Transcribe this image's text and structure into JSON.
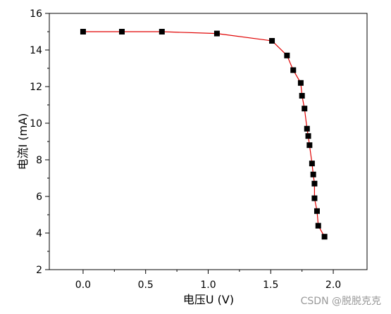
{
  "chart_data": {
    "type": "line",
    "xlabel": "电压U (V)",
    "ylabel": "电流I (mA)",
    "xlim": [
      -0.27,
      2.27
    ],
    "ylim": [
      2,
      16
    ],
    "xticks": [
      0.0,
      0.5,
      1.0,
      1.5,
      2.0
    ],
    "yticks": [
      2,
      4,
      6,
      8,
      10,
      12,
      14,
      16
    ],
    "xtick_labels": [
      "0.0",
      "0.5",
      "1.0",
      "1.5",
      "2.0"
    ],
    "ytick_labels": [
      "2",
      "4",
      "6",
      "8",
      "10",
      "12",
      "14",
      "16"
    ],
    "grid": false,
    "line_color": "#e00000",
    "marker_color": "#000000",
    "marker": "square",
    "x": [
      0.0,
      0.31,
      0.63,
      1.07,
      1.51,
      1.63,
      1.68,
      1.74,
      1.75,
      1.77,
      1.79,
      1.8,
      1.81,
      1.83,
      1.84,
      1.85,
      1.85,
      1.87,
      1.88,
      1.93
    ],
    "y": [
      15.0,
      15.0,
      15.0,
      14.9,
      14.5,
      13.7,
      12.9,
      12.2,
      11.5,
      10.8,
      9.7,
      9.3,
      8.8,
      7.8,
      7.2,
      6.7,
      5.9,
      5.2,
      4.4,
      3.8
    ]
  },
  "watermark": "CSDN @脱脱克克"
}
